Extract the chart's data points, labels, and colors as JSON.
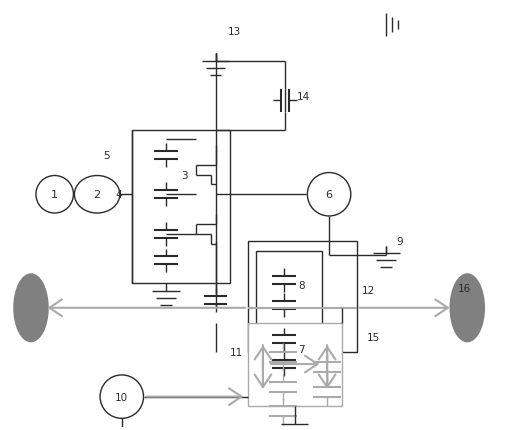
{
  "fig_width": 5.18,
  "fig_height": 4.31,
  "dpi": 100,
  "bg_color": "#ffffff",
  "lc": "#2a2a2a",
  "gc": "#aaaaaa",
  "cc": "#808080"
}
